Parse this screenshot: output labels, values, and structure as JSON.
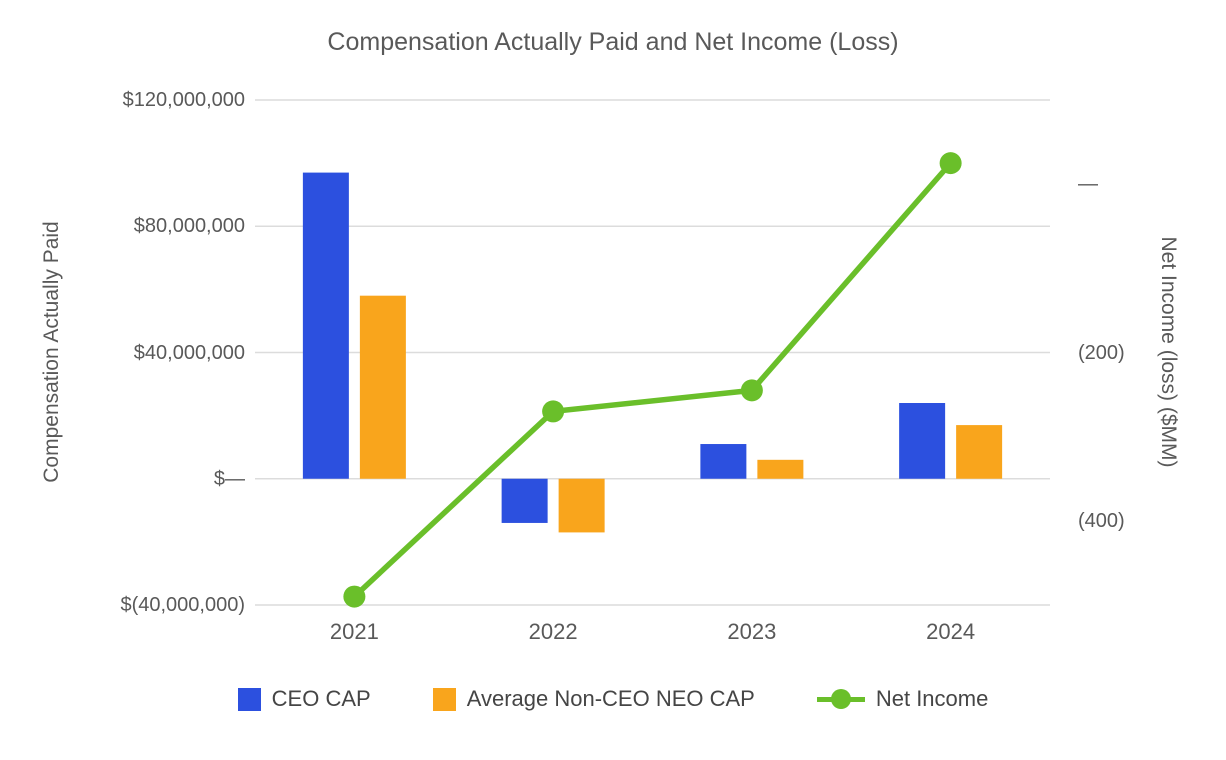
{
  "chart_data": {
    "type": "combo (bar + line)",
    "title": "Compensation Actually Paid and Net Income (Loss)",
    "categories": [
      "2021",
      "2022",
      "2023",
      "2024"
    ],
    "series": [
      {
        "name": "CEO CAP",
        "type": "bar",
        "axis": "left",
        "color": "#2C50DF",
        "values": [
          97000000,
          -14000000,
          11000000,
          24000000
        ]
      },
      {
        "name": "Average Non-CEO NEO CAP",
        "type": "bar",
        "axis": "left",
        "color": "#F9A51C",
        "values": [
          58000000,
          -17000000,
          6000000,
          17000000
        ]
      },
      {
        "name": "Net Income",
        "type": "line",
        "axis": "right",
        "color": "#6ABF2A",
        "values": [
          -490,
          -270,
          -245,
          25
        ]
      }
    ],
    "left_axis": {
      "title": "Compensation Actually Paid",
      "min": -40000000,
      "max": 120000000,
      "ticks": [
        120000000,
        80000000,
        40000000,
        0,
        -40000000
      ],
      "tick_labels": [
        "$120,000,000",
        "$80,000,000",
        "$40,000,000",
        "$—",
        "$(40,000,000)"
      ]
    },
    "right_axis": {
      "title": "Net Income (loss) ($MM)",
      "min": -500,
      "max": 100,
      "ticks": [
        0,
        -200,
        -400
      ],
      "tick_labels": [
        "—",
        "(200)",
        "(400)"
      ]
    },
    "legend": [
      {
        "label": "CEO CAP",
        "marker": "square",
        "color": "#2C50DF"
      },
      {
        "label": "Average Non-CEO NEO CAP",
        "marker": "square",
        "color": "#F9A51C"
      },
      {
        "label": "Net Income",
        "marker": "line-dot",
        "color": "#6ABF2A"
      }
    ],
    "legend_position": "bottom",
    "grid": true,
    "gridline_color": "#DCDCDC",
    "text_color": "#595959",
    "background": "#FFFFFF"
  }
}
